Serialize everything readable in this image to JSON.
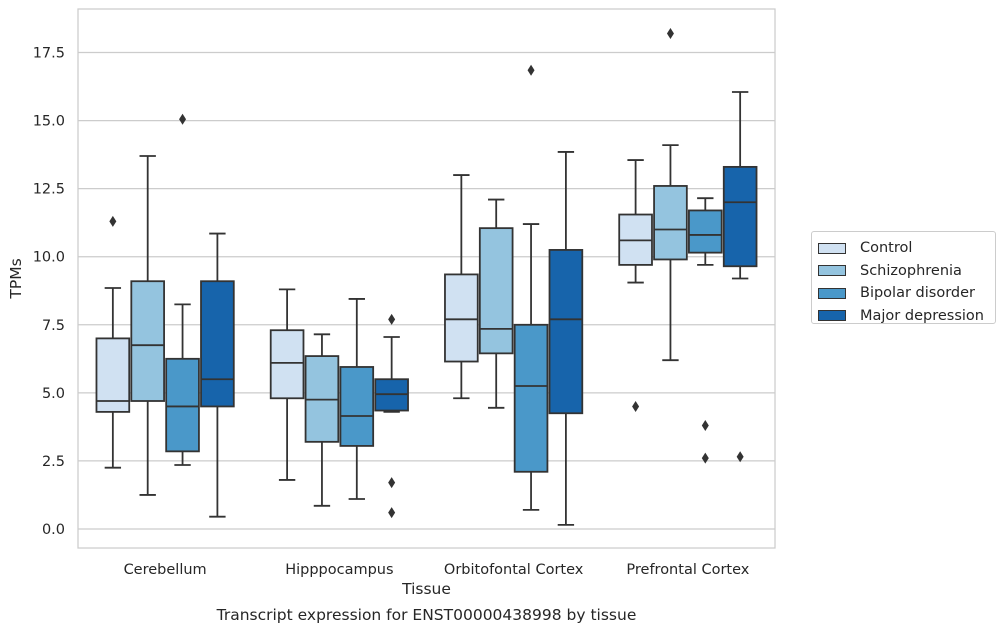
{
  "caption": "Transcript expression for ENST00000438998 by tissue",
  "chart_data": {
    "type": "box",
    "title": "",
    "xlabel": "Tissue",
    "ylabel": "TPMs",
    "ylim": [
      -0.7,
      19.1
    ],
    "yticks": [
      0.0,
      2.5,
      5.0,
      7.5,
      10.0,
      12.5,
      15.0,
      17.5
    ],
    "ytick_labels": [
      "0.0",
      "2.5",
      "5.0",
      "7.5",
      "10.0",
      "12.5",
      "15.0",
      "17.5"
    ],
    "grid": "horizontal",
    "legend_position": "right",
    "categories": [
      "Cerebellum",
      "Hipppocampus",
      "Orbitofontal Cortex",
      "Prefrontal Cortex"
    ],
    "series": [
      {
        "name": "Control",
        "color": "#d0e1f2",
        "boxes": [
          {
            "whisker_low": 2.25,
            "q1": 4.3,
            "median": 4.7,
            "q3": 7.0,
            "whisker_high": 8.85,
            "outliers": [
              11.3
            ]
          },
          {
            "whisker_low": 1.8,
            "q1": 4.8,
            "median": 6.1,
            "q3": 7.3,
            "whisker_high": 8.8,
            "outliers": []
          },
          {
            "whisker_low": 4.8,
            "q1": 6.15,
            "median": 7.7,
            "q3": 9.35,
            "whisker_high": 13.0,
            "outliers": []
          },
          {
            "whisker_low": 9.05,
            "q1": 9.7,
            "median": 10.6,
            "q3": 11.55,
            "whisker_high": 13.55,
            "outliers": [
              4.5
            ]
          }
        ]
      },
      {
        "name": "Schizophrenia",
        "color": "#94c4df",
        "boxes": [
          {
            "whisker_low": 1.25,
            "q1": 4.7,
            "median": 6.75,
            "q3": 9.1,
            "whisker_high": 13.7,
            "outliers": []
          },
          {
            "whisker_low": 0.85,
            "q1": 3.2,
            "median": 4.75,
            "q3": 6.35,
            "whisker_high": 7.15,
            "outliers": []
          },
          {
            "whisker_low": 4.45,
            "q1": 6.45,
            "median": 7.35,
            "q3": 11.05,
            "whisker_high": 12.1,
            "outliers": []
          },
          {
            "whisker_low": 6.2,
            "q1": 9.9,
            "median": 11.0,
            "q3": 12.6,
            "whisker_high": 14.1,
            "outliers": [
              18.2
            ]
          }
        ]
      },
      {
        "name": "Bipolar disorder",
        "color": "#4a98c9",
        "boxes": [
          {
            "whisker_low": 2.35,
            "q1": 2.85,
            "median": 4.5,
            "q3": 6.25,
            "whisker_high": 8.25,
            "outliers": [
              15.05
            ]
          },
          {
            "whisker_low": 1.1,
            "q1": 3.05,
            "median": 4.15,
            "q3": 5.95,
            "whisker_high": 8.45,
            "outliers": []
          },
          {
            "whisker_low": 0.7,
            "q1": 2.1,
            "median": 5.25,
            "q3": 7.5,
            "whisker_high": 11.2,
            "outliers": [
              16.85
            ]
          },
          {
            "whisker_low": 9.7,
            "q1": 10.15,
            "median": 10.8,
            "q3": 11.7,
            "whisker_high": 12.15,
            "outliers": [
              3.8,
              2.6
            ]
          }
        ]
      },
      {
        "name": "Major depression",
        "color": "#1764ab",
        "boxes": [
          {
            "whisker_low": 0.45,
            "q1": 4.5,
            "median": 5.5,
            "q3": 9.1,
            "whisker_high": 10.85,
            "outliers": []
          },
          {
            "whisker_low": 4.3,
            "q1": 4.35,
            "median": 4.95,
            "q3": 5.5,
            "whisker_high": 7.05,
            "outliers": [
              7.7,
              1.7,
              0.6
            ]
          },
          {
            "whisker_low": 0.15,
            "q1": 4.25,
            "median": 7.7,
            "q3": 10.25,
            "whisker_high": 13.85,
            "outliers": []
          },
          {
            "whisker_low": 9.2,
            "q1": 9.65,
            "median": 12.0,
            "q3": 13.3,
            "whisker_high": 16.05,
            "outliers": [
              2.65
            ]
          }
        ]
      }
    ]
  }
}
